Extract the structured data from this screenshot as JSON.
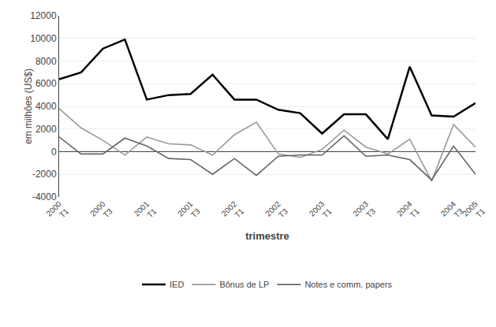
{
  "chart_data": {
    "type": "line",
    "xlabel": "trimestre",
    "ylabel": "em milhões (US$)",
    "categories": [
      "2000\nT1",
      null,
      "2000\nT3",
      null,
      "2001\nT1",
      null,
      "2001\nT3",
      null,
      "2002\nT1",
      null,
      "2002\nT3",
      null,
      "2003\nT1",
      null,
      "2003\nT3",
      null,
      "2004\nT1",
      null,
      "2004\nT3",
      "2005\nT1"
    ],
    "series": [
      {
        "name": "IED",
        "color": "#000000",
        "values": [
          6400,
          7000,
          9100,
          9900,
          4600,
          5000,
          5100,
          6800,
          4600,
          4600,
          3700,
          3400,
          1600,
          3300,
          3300,
          1100,
          7500,
          3200,
          3100,
          4300
        ]
      },
      {
        "name": "Bônus de LP",
        "color": "#999999",
        "values": [
          3800,
          2100,
          1000,
          -300,
          1300,
          700,
          600,
          -300,
          1500,
          2600,
          -200,
          -500,
          200,
          1900,
          400,
          -200,
          1100,
          -2600,
          2400,
          400
        ]
      },
      {
        "name": "Notes e comm. papers",
        "color": "#666666",
        "values": [
          1300,
          -200,
          -200,
          1200,
          500,
          -600,
          -700,
          -2000,
          -600,
          -2100,
          -400,
          -300,
          -300,
          1400,
          -400,
          -300,
          -700,
          -2500,
          500,
          -2000
        ]
      }
    ],
    "ylim": [
      -4000,
      12000
    ],
    "yticks": [
      -4000,
      -2000,
      0,
      2000,
      4000,
      6000,
      8000,
      10000,
      12000
    ],
    "grid": true,
    "legend": "bottom"
  }
}
